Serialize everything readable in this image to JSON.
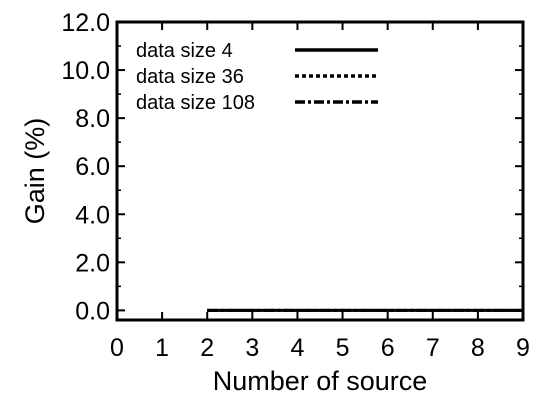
{
  "chart_data": {
    "type": "line",
    "title": "",
    "xlabel": "Number of source",
    "ylabel": "Gain (%)",
    "xlim": [
      0,
      9
    ],
    "ylim": [
      -0.4,
      12.0
    ],
    "xticks": [
      0,
      1,
      2,
      3,
      4,
      5,
      6,
      7,
      8,
      9
    ],
    "xtick_labels": [
      "0",
      "1",
      "2",
      "3",
      "4",
      "5",
      "6",
      "7",
      "8",
      "9"
    ],
    "yticks": [
      0,
      2,
      4,
      6,
      8,
      10,
      12
    ],
    "ytick_labels": [
      "0.0",
      "2.0",
      "4.0",
      "6.0",
      "8.0",
      "10.0",
      "12.0"
    ],
    "grid": false,
    "legend_position": "top-left",
    "series": [
      {
        "name": "data size 4",
        "style": "solid",
        "x": [
          2,
          3,
          4,
          5,
          6,
          7,
          8,
          9
        ],
        "values": [
          0,
          0,
          0,
          0,
          0,
          0,
          0,
          0
        ]
      },
      {
        "name": "data size 36",
        "style": "dotted",
        "x": [
          2,
          3,
          4,
          5,
          6,
          7,
          8,
          9
        ],
        "values": [
          0,
          0,
          0,
          0,
          0,
          0,
          0,
          0
        ]
      },
      {
        "name": "data size 108",
        "style": "dashdot",
        "x": [
          2,
          3,
          4,
          5,
          6,
          7,
          8,
          9
        ],
        "values": [
          0,
          0,
          0,
          0,
          0,
          0,
          0,
          0
        ]
      }
    ],
    "colors": {
      "line": "#000000",
      "background": "#ffffff"
    }
  }
}
